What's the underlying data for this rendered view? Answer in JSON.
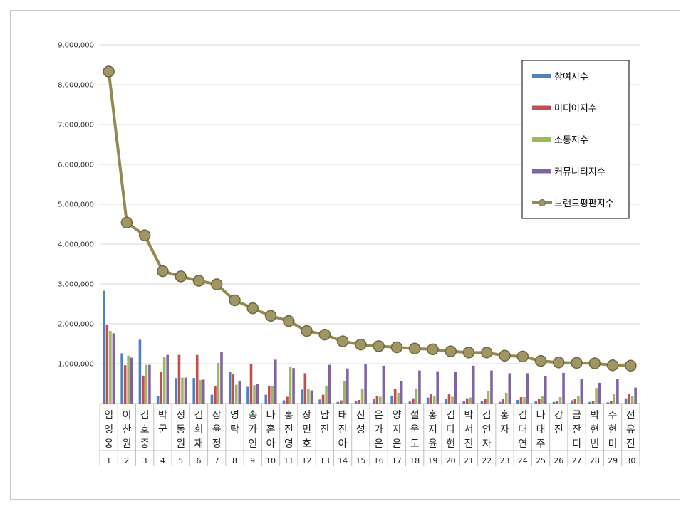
{
  "chart_data": {
    "type": "bar",
    "y_ticks": [
      "-",
      "1,000,000",
      "2,000,000",
      "3,000,000",
      "4,000,000",
      "5,000,000",
      "6,000,000",
      "7,000,000",
      "8,000,000",
      "9,000,000"
    ],
    "ylim": [
      0,
      9000000
    ],
    "grid": true,
    "legend_position": "top-right",
    "categories": [
      "임영웅",
      "이찬원",
      "김호중",
      "박군",
      "정동원",
      "김희재",
      "장윤정",
      "영탁",
      "송가인",
      "나훈아",
      "홍진영",
      "장민호",
      "남진",
      "태진아",
      "진성",
      "은가은",
      "양지은",
      "설운도",
      "홍지윤",
      "김다현",
      "박서진",
      "김연자",
      "홍자",
      "김태연",
      "나태주",
      "강진",
      "금잔디",
      "박현빈",
      "주현미",
      "전유진"
    ],
    "ranks": [
      "1",
      "2",
      "3",
      "4",
      "5",
      "6",
      "7",
      "8",
      "9",
      "10",
      "11",
      "12",
      "13",
      "14",
      "15",
      "16",
      "17",
      "18",
      "19",
      "20",
      "21",
      "22",
      "23",
      "24",
      "25",
      "26",
      "27",
      "28",
      "29",
      "30"
    ],
    "series": [
      {
        "name": "참여지수",
        "color": "#4f81bd",
        "values": [
          2830000,
          1260000,
          1600000,
          190000,
          640000,
          640000,
          220000,
          790000,
          420000,
          220000,
          80000,
          350000,
          100000,
          40000,
          60000,
          110000,
          200000,
          50000,
          150000,
          120000,
          60000,
          60000,
          40000,
          90000,
          60000,
          40000,
          80000,
          40000,
          30000,
          130000
        ]
      },
      {
        "name": "미디어지수",
        "color": "#c0504d",
        "values": [
          1970000,
          960000,
          700000,
          790000,
          1220000,
          1220000,
          440000,
          730000,
          1000000,
          430000,
          170000,
          760000,
          220000,
          80000,
          90000,
          190000,
          370000,
          130000,
          230000,
          230000,
          130000,
          120000,
          110000,
          160000,
          120000,
          70000,
          120000,
          60000,
          60000,
          240000
        ]
      },
      {
        "name": "소통지수",
        "color": "#9bbb59",
        "values": [
          1820000,
          1200000,
          970000,
          1160000,
          650000,
          590000,
          1020000,
          470000,
          460000,
          430000,
          930000,
          370000,
          450000,
          560000,
          360000,
          170000,
          270000,
          380000,
          180000,
          170000,
          150000,
          310000,
          270000,
          160000,
          180000,
          160000,
          190000,
          390000,
          240000,
          190000
        ]
      },
      {
        "name": "커뮤니티지수",
        "color": "#8064a2",
        "values": [
          1760000,
          1150000,
          970000,
          1220000,
          650000,
          600000,
          1300000,
          560000,
          490000,
          1100000,
          890000,
          330000,
          970000,
          880000,
          980000,
          950000,
          570000,
          830000,
          810000,
          800000,
          950000,
          830000,
          760000,
          760000,
          680000,
          770000,
          620000,
          520000,
          610000,
          400000
        ]
      },
      {
        "name": "브랜드평판지수",
        "color": "#938953",
        "type": "line",
        "values": [
          8330000,
          4540000,
          4220000,
          3320000,
          3190000,
          3080000,
          2990000,
          2590000,
          2390000,
          2200000,
          2070000,
          1820000,
          1730000,
          1560000,
          1480000,
          1440000,
          1410000,
          1380000,
          1360000,
          1310000,
          1280000,
          1280000,
          1200000,
          1180000,
          1070000,
          1030000,
          1020000,
          1010000,
          960000,
          950000
        ]
      }
    ]
  }
}
